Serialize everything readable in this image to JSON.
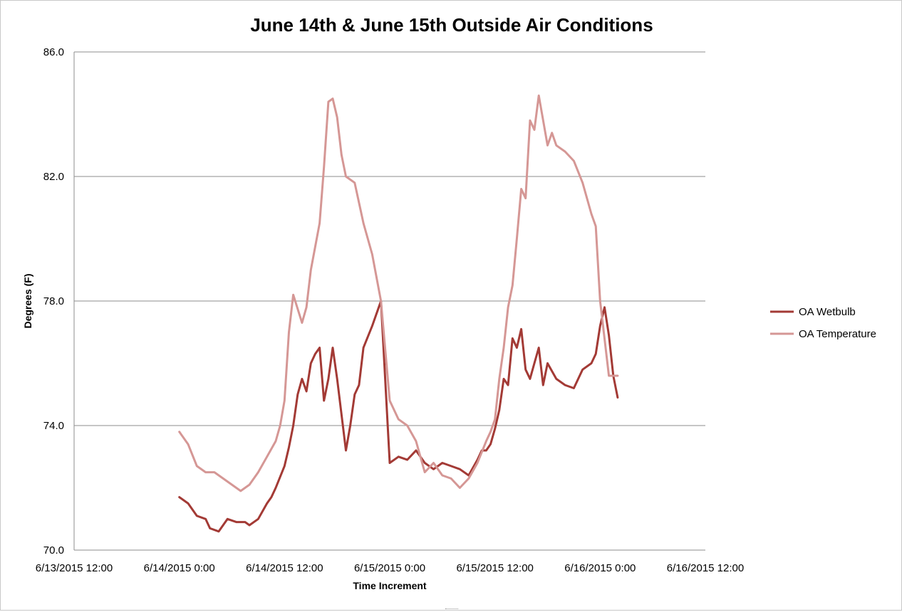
{
  "chart_data": {
    "type": "line",
    "title": "June 14th & June 15th Outside Air Conditions",
    "xlabel": "Time Increment",
    "ylabel": "Degrees (F)",
    "ylim": [
      70,
      86
    ],
    "xlim": [
      "6/13/2015 12:00",
      "6/16/2015 12:00"
    ],
    "y_ticks": [
      "70.0",
      "74.0",
      "78.0",
      "82.0",
      "86.0"
    ],
    "x_ticks": [
      "6/13/2015 12:00",
      "6/14/2015 0:00",
      "6/14/2015 12:00",
      "6/15/2015 0:00",
      "6/15/2015 12:00",
      "6/16/2015 0:00",
      "6/16/2015 12:00"
    ],
    "grid": "horizontal",
    "legend": "right",
    "series": [
      {
        "name": "OA Wetbulb",
        "color": "#a33a35",
        "x": [
          "6/14/2015 0:00",
          "6/14/2015 1:00",
          "6/14/2015 2:00",
          "6/14/2015 3:00",
          "6/14/2015 3:30",
          "6/14/2015 4:30",
          "6/14/2015 5:30",
          "6/14/2015 6:30",
          "6/14/2015 7:30",
          "6/14/2015 8:00",
          "6/14/2015 9:00",
          "6/14/2015 10:00",
          "6/14/2015 10:30",
          "6/14/2015 11:00",
          "6/14/2015 12:00",
          "6/14/2015 12:30",
          "6/14/2015 13:00",
          "6/14/2015 13:30",
          "6/14/2015 14:00",
          "6/14/2015 14:30",
          "6/14/2015 15:00",
          "6/14/2015 15:30",
          "6/14/2015 16:00",
          "6/14/2015 16:30",
          "6/14/2015 17:00",
          "6/14/2015 17:30",
          "6/14/2015 18:00",
          "6/14/2015 19:00",
          "6/14/2015 19:30",
          "6/14/2015 20:00",
          "6/14/2015 20:30",
          "6/14/2015 21:00",
          "6/14/2015 22:00",
          "6/14/2015 23:00",
          "6/15/2015 0:00",
          "6/15/2015 1:00",
          "6/15/2015 2:00",
          "6/15/2015 3:00",
          "6/15/2015 4:00",
          "6/15/2015 5:00",
          "6/15/2015 6:00",
          "6/15/2015 7:00",
          "6/15/2015 8:00",
          "6/15/2015 9:00",
          "6/15/2015 10:00",
          "6/15/2015 10:30",
          "6/15/2015 11:00",
          "6/15/2015 11:30",
          "6/15/2015 12:00",
          "6/15/2015 12:30",
          "6/15/2015 13:00",
          "6/15/2015 13:30",
          "6/15/2015 14:00",
          "6/15/2015 14:30",
          "6/15/2015 15:00",
          "6/15/2015 15:30",
          "6/15/2015 16:00",
          "6/15/2015 16:30",
          "6/15/2015 17:00",
          "6/15/2015 17:30",
          "6/15/2015 18:00",
          "6/15/2015 19:00",
          "6/15/2015 20:00",
          "6/15/2015 21:00",
          "6/15/2015 22:00",
          "6/15/2015 23:00",
          "6/15/2015 23:30",
          "6/16/2015 0:00",
          "6/16/2015 0:30",
          "6/16/2015 1:00",
          "6/16/2015 1:30",
          "6/16/2015 2:00"
        ],
        "values": [
          71.7,
          71.5,
          71.1,
          71.0,
          70.7,
          70.6,
          71.0,
          70.9,
          70.9,
          70.8,
          71.0,
          71.5,
          71.7,
          72.0,
          72.7,
          73.3,
          74.0,
          75.0,
          75.5,
          75.1,
          76.0,
          76.3,
          76.5,
          74.8,
          75.5,
          76.5,
          75.5,
          73.2,
          74.0,
          75.0,
          75.3,
          76.5,
          77.2,
          78.0,
          72.8,
          73.0,
          72.9,
          73.2,
          72.8,
          72.6,
          72.8,
          72.7,
          72.6,
          72.4,
          72.9,
          73.2,
          73.2,
          73.4,
          73.9,
          74.5,
          75.5,
          75.3,
          76.8,
          76.5,
          77.1,
          75.8,
          75.5,
          76.0,
          76.5,
          75.3,
          76.0,
          75.5,
          75.3,
          75.2,
          75.8,
          76.0,
          76.3,
          77.2,
          77.8,
          76.9,
          75.6,
          74.9
        ]
      },
      {
        "name": "OA Temperature",
        "color": "#d59795",
        "x": [
          "6/14/2015 0:00",
          "6/14/2015 1:00",
          "6/14/2015 2:00",
          "6/14/2015 3:00",
          "6/14/2015 4:00",
          "6/14/2015 5:00",
          "6/14/2015 6:00",
          "6/14/2015 7:00",
          "6/14/2015 8:00",
          "6/14/2015 9:00",
          "6/14/2015 10:00",
          "6/14/2015 11:00",
          "6/14/2015 11:30",
          "6/14/2015 12:00",
          "6/14/2015 12:30",
          "6/14/2015 13:00",
          "6/14/2015 14:00",
          "6/14/2015 14:30",
          "6/14/2015 15:00",
          "6/14/2015 16:00",
          "6/14/2015 16:30",
          "6/14/2015 17:00",
          "6/14/2015 17:30",
          "6/14/2015 18:00",
          "6/14/2015 18:30",
          "6/14/2015 19:00",
          "6/14/2015 20:00",
          "6/14/2015 21:00",
          "6/14/2015 22:00",
          "6/14/2015 23:00",
          "6/15/2015 0:00",
          "6/15/2015 1:00",
          "6/15/2015 2:00",
          "6/15/2015 3:00",
          "6/15/2015 4:00",
          "6/15/2015 5:00",
          "6/15/2015 6:00",
          "6/15/2015 7:00",
          "6/15/2015 8:00",
          "6/15/2015 9:00",
          "6/15/2015 10:00",
          "6/15/2015 11:00",
          "6/15/2015 11:30",
          "6/15/2015 12:00",
          "6/15/2015 12:30",
          "6/15/2015 13:00",
          "6/15/2015 13:30",
          "6/15/2015 14:00",
          "6/15/2015 14:30",
          "6/15/2015 15:00",
          "6/15/2015 15:30",
          "6/15/2015 16:00",
          "6/15/2015 16:30",
          "6/15/2015 17:00",
          "6/15/2015 18:00",
          "6/15/2015 18:30",
          "6/15/2015 19:00",
          "6/15/2015 20:00",
          "6/15/2015 21:00",
          "6/15/2015 22:00",
          "6/15/2015 23:00",
          "6/15/2015 23:30",
          "6/16/2015 0:00",
          "6/16/2015 1:00",
          "6/16/2015 2:00"
        ],
        "values": [
          73.8,
          73.4,
          72.7,
          72.5,
          72.5,
          72.3,
          72.1,
          71.9,
          72.1,
          72.5,
          73.0,
          73.5,
          74.0,
          74.8,
          77.0,
          78.2,
          77.3,
          77.8,
          79.0,
          80.5,
          82.3,
          84.4,
          84.5,
          83.9,
          82.7,
          82.0,
          81.8,
          80.5,
          79.5,
          78.0,
          74.8,
          74.2,
          74.0,
          73.5,
          72.5,
          72.8,
          72.4,
          72.3,
          72.0,
          72.3,
          72.8,
          73.5,
          73.8,
          74.2,
          75.5,
          76.5,
          77.8,
          78.5,
          80.0,
          81.6,
          81.3,
          83.8,
          83.5,
          84.6,
          83.0,
          83.4,
          83.0,
          82.8,
          82.5,
          81.8,
          80.8,
          80.4,
          78.0,
          75.6,
          75.6
        ]
      }
    ]
  }
}
